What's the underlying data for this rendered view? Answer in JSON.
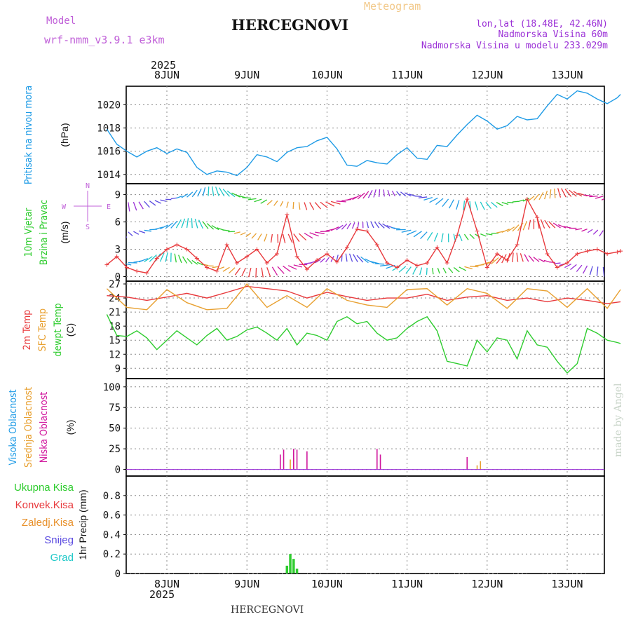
{
  "header": {
    "model_label": "Model",
    "model_name": "wrf-nmm_v3.9.1  e3km",
    "station": "HERCEGNOVI",
    "meteogram": "Meteogram",
    "lonlat": "lon,lat (18.48E, 42.46N)",
    "elevation": "Nadmorska Visina 60m",
    "model_elevation": "Nadmorska Visina u modelu 233.029m"
  },
  "footer": {
    "station": "HERCEGNOVI",
    "watermark": "made by Angel"
  },
  "colors": {
    "cyan": "#1e9be6",
    "red": "#e8393c",
    "orange": "#e8a030",
    "green": "#2ecc2e",
    "magenta": "#d0149c",
    "purple": "#9a2fd6",
    "violet": "#5a4ae0",
    "teal": "#1ec8c8",
    "pink": "#c060d8"
  },
  "chart_data": {
    "type": "meteogram",
    "year": "2025",
    "days": [
      "8JUN",
      "9JUN",
      "10JUN",
      "11JUN",
      "12JUN",
      "13JUN"
    ],
    "time_range_hours": [
      -18,
      136
    ],
    "panels": [
      {
        "id": "pressure",
        "type": "line",
        "labels": [
          "Pritisak na nivou mora"
        ],
        "unit": "(hPa)",
        "ylim": [
          1013.2,
          1021.6
        ],
        "yticks": [
          1014,
          1016,
          1018,
          1020
        ],
        "series": [
          {
            "name": "pressure",
            "color": "#1e9be6",
            "t": [
              -18,
              -15,
              -12,
              -9,
              -6,
              -3,
              0,
              3,
              6,
              9,
              12,
              15,
              18,
              21,
              24,
              27,
              30,
              33,
              36,
              39,
              42,
              45,
              48,
              51,
              54,
              57,
              60,
              63,
              66,
              69,
              72,
              75,
              78,
              81,
              84,
              87,
              90,
              93,
              96,
              99,
              102,
              105,
              108,
              111,
              114,
              117,
              120,
              123,
              126,
              129,
              132,
              135,
              136
            ],
            "v": [
              1017.9,
              1016.6,
              1016.0,
              1015.5,
              1016.0,
              1016.3,
              1015.8,
              1016.2,
              1015.9,
              1014.6,
              1014.0,
              1014.3,
              1014.2,
              1013.9,
              1014.6,
              1015.7,
              1015.5,
              1015.1,
              1015.9,
              1016.3,
              1016.4,
              1016.9,
              1017.2,
              1016.2,
              1014.8,
              1014.7,
              1015.2,
              1015.0,
              1014.9,
              1015.7,
              1016.3,
              1015.4,
              1015.3,
              1016.5,
              1016.4,
              1017.4,
              1018.3,
              1019.1,
              1018.6,
              1017.9,
              1018.2,
              1019.0,
              1018.7,
              1018.8,
              1019.9,
              1020.9,
              1020.5,
              1021.2,
              1021.0,
              1020.5,
              1020.1,
              1020.6,
              1020.9
            ]
          }
        ]
      },
      {
        "id": "wind",
        "type": "line+barbs",
        "labels": [
          "10m Vjetar",
          "Brzina i Pravac"
        ],
        "unit": "(m/s)",
        "ylim": [
          -0.5,
          10.2
        ],
        "yticks": [
          0,
          3,
          6,
          9
        ],
        "direction_legend": [
          "N",
          "E",
          "S",
          "W"
        ],
        "series": [
          {
            "name": "wind_speed",
            "color": "#e8393c",
            "t": [
              -18,
              -15,
              -12,
              -9,
              -6,
              -3,
              0,
              3,
              6,
              9,
              12,
              15,
              18,
              21,
              24,
              27,
              30,
              33,
              36,
              39,
              42,
              45,
              48,
              51,
              54,
              57,
              60,
              63,
              66,
              69,
              72,
              75,
              78,
              81,
              84,
              87,
              90,
              93,
              96,
              99,
              102,
              105,
              108,
              111,
              114,
              117,
              120,
              123,
              126,
              129,
              132,
              135,
              136
            ],
            "v": [
              1.3,
              2.2,
              1.0,
              0.6,
              0.4,
              2.0,
              3.0,
              3.5,
              3.0,
              2.0,
              1.0,
              0.6,
              3.5,
              1.5,
              2.2,
              3.0,
              1.5,
              2.5,
              6.8,
              2.2,
              0.8,
              1.8,
              2.5,
              1.6,
              3.2,
              5.2,
              5.0,
              3.5,
              1.5,
              1.0,
              1.8,
              1.2,
              1.5,
              3.2,
              1.5,
              4.5,
              8.5,
              5.0,
              1.0,
              2.5,
              1.8,
              3.5,
              8.5,
              6.5,
              2.5,
              1.0,
              1.5,
              2.5,
              2.8,
              3.0,
              2.5,
              2.7,
              2.8
            ]
          }
        ]
      },
      {
        "id": "temperature",
        "type": "line",
        "labels": [
          "2m Temp",
          "SFC Temp",
          "dewpt Temp"
        ],
        "unit": "(C)",
        "ylim": [
          6.8,
          27.6
        ],
        "yticks": [
          9,
          12,
          15,
          18,
          21,
          24,
          27
        ],
        "series": [
          {
            "name": "2m Temp",
            "color": "#e8393c",
            "t": [
              -18,
              -12,
              -6,
              0,
              6,
              12,
              18,
              24,
              30,
              36,
              42,
              48,
              54,
              60,
              66,
              72,
              78,
              84,
              90,
              96,
              102,
              108,
              114,
              120,
              126,
              132,
              136
            ],
            "v": [
              24.5,
              24.2,
              23.5,
              24.2,
              25.0,
              24.0,
              25.2,
              26.5,
              26.0,
              25.5,
              24.0,
              25.2,
              24.3,
              23.5,
              24.0,
              24.0,
              24.8,
              23.5,
              24.2,
              24.5,
              23.5,
              24.0,
              23.2,
              24.0,
              23.5,
              22.8,
              23.2
            ]
          },
          {
            "name": "SFC Temp",
            "color": "#e8a030",
            "t": [
              -18,
              -12,
              -6,
              0,
              6,
              12,
              18,
              24,
              30,
              36,
              42,
              48,
              54,
              60,
              66,
              72,
              78,
              84,
              90,
              96,
              102,
              108,
              114,
              120,
              126,
              132,
              136
            ],
            "v": [
              26.0,
              22.0,
              21.5,
              25.8,
              23.0,
              21.5,
              21.8,
              27.0,
              22.0,
              24.5,
              22.0,
              26.0,
              23.5,
              22.5,
              22.0,
              25.8,
              26.0,
              22.5,
              26.0,
              25.0,
              21.8,
              26.0,
              25.5,
              22.0,
              26.0,
              21.8,
              25.8
            ]
          },
          {
            "name": "dewpt Temp",
            "color": "#2ecc2e",
            "t": [
              -18,
              -15,
              -12,
              -9,
              -6,
              -3,
              0,
              3,
              6,
              9,
              12,
              15,
              18,
              21,
              24,
              27,
              30,
              33,
              36,
              39,
              42,
              45,
              48,
              51,
              54,
              57,
              60,
              63,
              66,
              69,
              72,
              75,
              78,
              81,
              84,
              87,
              90,
              93,
              96,
              99,
              102,
              105,
              108,
              111,
              114,
              117,
              120,
              123,
              126,
              129,
              132,
              135,
              136
            ],
            "v": [
              20.5,
              16.0,
              15.8,
              17.0,
              15.5,
              13.0,
              15.0,
              17.0,
              15.5,
              14.0,
              16.0,
              17.5,
              15.0,
              15.8,
              17.2,
              17.8,
              16.5,
              15.0,
              17.5,
              14.0,
              16.5,
              16.0,
              15.0,
              19.0,
              20.0,
              18.5,
              19.0,
              16.5,
              15.0,
              15.5,
              17.5,
              19.0,
              20.0,
              17.0,
              10.5,
              10.0,
              9.5,
              15.0,
              12.5,
              15.5,
              15.0,
              11.0,
              17.0,
              14.0,
              13.5,
              10.5,
              8.0,
              10.0,
              17.5,
              16.5,
              15.0,
              14.5,
              14.3
            ]
          }
        ]
      },
      {
        "id": "cloud",
        "type": "bar",
        "labels": [
          "Visoka Oblacnost",
          "Srednja Oblacnost",
          "Niska Oblacnost"
        ],
        "unit": "(%)",
        "ylim": [
          -8,
          110
        ],
        "yticks": [
          0,
          25,
          50,
          75,
          100
        ],
        "series": [
          {
            "name": "Visoka Oblacnost",
            "color": "#1e9be6",
            "t": [
              38,
              90
            ],
            "v": [
              2,
              3
            ]
          },
          {
            "name": "Srednja Oblacnost",
            "color": "#e8a030",
            "t": [
              37,
              38,
              93,
              94
            ],
            "v": [
              12,
              14,
              5,
              10
            ]
          },
          {
            "name": "Niska Oblacnost",
            "color": "#d0149c",
            "t": [
              34,
              35,
              38,
              39,
              42,
              63,
              64,
              90
            ],
            "v": [
              18,
              24,
              25,
              24,
              22,
              25,
              18,
              15
            ]
          }
        ]
      },
      {
        "id": "precip",
        "type": "bar",
        "labels": [
          "Ukupna Kisa",
          "Konvek.Kisa",
          "Zaledj.Kisa",
          "Snijeg",
          "Grad"
        ],
        "unit": "1hr Precip (mm)",
        "ylim": [
          0,
          1.0
        ],
        "yticks": [
          0,
          0.2,
          0.4,
          0.6,
          0.8
        ],
        "series": [
          {
            "name": "Ukupna Kisa",
            "color": "#2ecc2e",
            "t": [
              36,
              37,
              38,
              39
            ],
            "v": [
              0.08,
              0.2,
              0.15,
              0.05
            ]
          }
        ]
      }
    ]
  }
}
